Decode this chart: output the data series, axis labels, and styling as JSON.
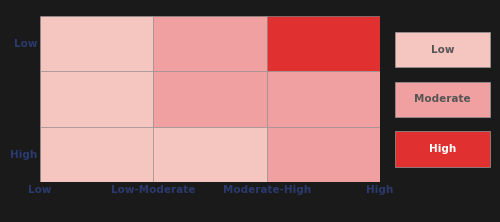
{
  "grid_colors": [
    [
      "#f5c5c0",
      "#f0a0a0",
      "#e03030"
    ],
    [
      "#f5c5c0",
      "#f0a0a0",
      "#f0a0a0"
    ],
    [
      "#f5c5c0",
      "#f5c5c0",
      "#f0a0a0"
    ]
  ],
  "ncols": 3,
  "nrows": 3,
  "xlabel_labels": [
    "Low",
    "Low-Moderate",
    "Moderate-High",
    "High"
  ],
  "ylabel_top": "Low",
  "ylabel_bottom": "High",
  "legend_labels": [
    "Low",
    "Moderate",
    "High"
  ],
  "legend_colors": [
    "#f5c5c0",
    "#f0a0a0",
    "#e03030"
  ],
  "legend_text_colors": [
    "#555555",
    "#555555",
    "#ffffff"
  ],
  "background_color": "#1a1a1a",
  "grid_line_color": "#999999",
  "axis_text_color": "#2b3a6e",
  "font_size": 7.5,
  "legend_font_size": 7.5
}
